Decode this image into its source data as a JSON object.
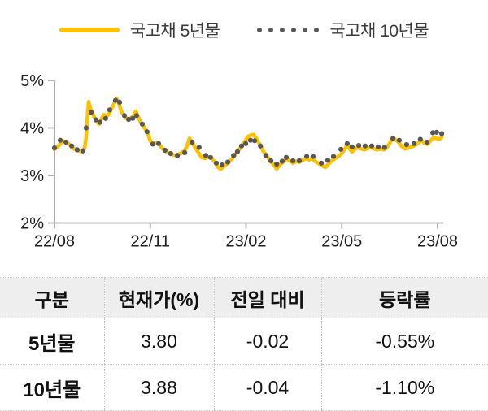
{
  "legend": {
    "series1_label": "국고채 5년물",
    "series2_label": "국고채 10년물"
  },
  "colors": {
    "line_5y": "#FFC000",
    "dots_10y": "#575757",
    "axis": "#A6A6A6",
    "axis_text": "#1f1f1f",
    "table_header_bg": "#eeeeee",
    "table_border": "#c6c6c6"
  },
  "chart_data": {
    "type": "line",
    "title": "",
    "xlabel": "",
    "ylabel": "",
    "legend_position": "top-center",
    "grid": false,
    "x_axis": {
      "tick_labels": [
        "22/08",
        "22/11",
        "23/02",
        "23/05",
        "23/08"
      ],
      "tick_positions_months": [
        0,
        3,
        6,
        9,
        12
      ]
    },
    "y_axis": {
      "tick_labels": [
        "5%",
        "4%",
        "3%",
        "2%"
      ],
      "tick_values": [
        5,
        4,
        3,
        2
      ],
      "min": 2,
      "max": 5,
      "unit": "%"
    },
    "series": [
      {
        "name": "국고채 5년물",
        "style": "line",
        "color": "#FFC000",
        "current": 3.8,
        "points": [
          [
            0.0,
            3.55
          ],
          [
            0.13,
            3.62
          ],
          [
            0.25,
            3.73
          ],
          [
            0.36,
            3.7
          ],
          [
            0.46,
            3.66
          ],
          [
            0.56,
            3.57
          ],
          [
            0.66,
            3.55
          ],
          [
            0.76,
            3.52
          ],
          [
            0.87,
            3.5
          ],
          [
            0.94,
            3.56
          ],
          [
            0.99,
            3.8
          ],
          [
            1.04,
            4.3
          ],
          [
            1.07,
            4.55
          ],
          [
            1.12,
            4.42
          ],
          [
            1.17,
            4.34
          ],
          [
            1.25,
            4.22
          ],
          [
            1.32,
            4.14
          ],
          [
            1.4,
            4.08
          ],
          [
            1.48,
            4.2
          ],
          [
            1.55,
            4.28
          ],
          [
            1.63,
            4.24
          ],
          [
            1.71,
            4.3
          ],
          [
            1.78,
            4.4
          ],
          [
            1.86,
            4.5
          ],
          [
            1.94,
            4.62
          ],
          [
            2.01,
            4.54
          ],
          [
            2.09,
            4.35
          ],
          [
            2.17,
            4.27
          ],
          [
            2.24,
            4.21
          ],
          [
            2.32,
            4.17
          ],
          [
            2.4,
            4.21
          ],
          [
            2.47,
            4.25
          ],
          [
            2.55,
            4.35
          ],
          [
            2.62,
            4.24
          ],
          [
            2.7,
            4.12
          ],
          [
            2.78,
            4.04
          ],
          [
            2.85,
            3.97
          ],
          [
            2.93,
            3.88
          ],
          [
            2.98,
            3.76
          ],
          [
            3.06,
            3.66
          ],
          [
            3.16,
            3.68
          ],
          [
            3.26,
            3.67
          ],
          [
            3.36,
            3.58
          ],
          [
            3.46,
            3.52
          ],
          [
            3.57,
            3.48
          ],
          [
            3.67,
            3.45
          ],
          [
            3.77,
            3.42
          ],
          [
            3.87,
            3.44
          ],
          [
            3.97,
            3.47
          ],
          [
            4.08,
            3.52
          ],
          [
            4.15,
            3.62
          ],
          [
            4.23,
            3.78
          ],
          [
            4.31,
            3.71
          ],
          [
            4.41,
            3.58
          ],
          [
            4.51,
            3.48
          ],
          [
            4.61,
            3.38
          ],
          [
            4.71,
            3.36
          ],
          [
            4.81,
            3.39
          ],
          [
            4.92,
            3.37
          ],
          [
            5.02,
            3.28
          ],
          [
            5.12,
            3.18
          ],
          [
            5.2,
            3.13
          ],
          [
            5.27,
            3.17
          ],
          [
            5.35,
            3.22
          ],
          [
            5.45,
            3.27
          ],
          [
            5.55,
            3.34
          ],
          [
            5.66,
            3.44
          ],
          [
            5.76,
            3.52
          ],
          [
            5.86,
            3.62
          ],
          [
            5.96,
            3.7
          ],
          [
            6.06,
            3.82
          ],
          [
            6.17,
            3.85
          ],
          [
            6.24,
            3.86
          ],
          [
            6.34,
            3.76
          ],
          [
            6.45,
            3.63
          ],
          [
            6.55,
            3.5
          ],
          [
            6.65,
            3.42
          ],
          [
            6.75,
            3.31
          ],
          [
            6.85,
            3.24
          ],
          [
            6.96,
            3.14
          ],
          [
            7.06,
            3.22
          ],
          [
            7.16,
            3.28
          ],
          [
            7.26,
            3.36
          ],
          [
            7.36,
            3.31
          ],
          [
            7.47,
            3.26
          ],
          [
            7.57,
            3.3
          ],
          [
            7.67,
            3.28
          ],
          [
            7.77,
            3.32
          ],
          [
            7.87,
            3.36
          ],
          [
            7.97,
            3.33
          ],
          [
            8.08,
            3.36
          ],
          [
            8.18,
            3.29
          ],
          [
            8.28,
            3.25
          ],
          [
            8.38,
            3.21
          ],
          [
            8.48,
            3.17
          ],
          [
            8.58,
            3.24
          ],
          [
            8.69,
            3.31
          ],
          [
            8.79,
            3.36
          ],
          [
            8.89,
            3.4
          ],
          [
            8.99,
            3.46
          ],
          [
            9.09,
            3.55
          ],
          [
            9.17,
            3.64
          ],
          [
            9.25,
            3.56
          ],
          [
            9.32,
            3.5
          ],
          [
            9.4,
            3.55
          ],
          [
            9.5,
            3.59
          ],
          [
            9.6,
            3.56
          ],
          [
            9.71,
            3.54
          ],
          [
            9.81,
            3.57
          ],
          [
            9.91,
            3.59
          ],
          [
            10.01,
            3.56
          ],
          [
            10.11,
            3.54
          ],
          [
            10.21,
            3.56
          ],
          [
            10.32,
            3.54
          ],
          [
            10.42,
            3.59
          ],
          [
            10.52,
            3.7
          ],
          [
            10.6,
            3.8
          ],
          [
            10.67,
            3.76
          ],
          [
            10.78,
            3.7
          ],
          [
            10.88,
            3.61
          ],
          [
            10.98,
            3.56
          ],
          [
            11.08,
            3.58
          ],
          [
            11.18,
            3.6
          ],
          [
            11.28,
            3.63
          ],
          [
            11.39,
            3.68
          ],
          [
            11.49,
            3.74
          ],
          [
            11.59,
            3.68
          ],
          [
            11.69,
            3.66
          ],
          [
            11.79,
            3.74
          ],
          [
            11.89,
            3.8
          ],
          [
            11.97,
            3.78
          ],
          [
            12.05,
            3.76
          ],
          [
            12.13,
            3.8
          ]
        ]
      },
      {
        "name": "국고채 10년물",
        "style": "dots",
        "color": "#575757",
        "current": 3.88,
        "points": [
          [
            0.0,
            3.58
          ],
          [
            0.18,
            3.74
          ],
          [
            0.36,
            3.7
          ],
          [
            0.54,
            3.62
          ],
          [
            0.71,
            3.54
          ],
          [
            0.89,
            3.52
          ],
          [
            0.99,
            4.0
          ],
          [
            1.15,
            4.33
          ],
          [
            1.3,
            4.17
          ],
          [
            1.43,
            4.12
          ],
          [
            1.6,
            4.2
          ],
          [
            1.73,
            4.38
          ],
          [
            1.91,
            4.58
          ],
          [
            2.04,
            4.54
          ],
          [
            2.19,
            4.26
          ],
          [
            2.32,
            4.18
          ],
          [
            2.45,
            4.2
          ],
          [
            2.57,
            4.26
          ],
          [
            2.75,
            4.08
          ],
          [
            2.9,
            3.92
          ],
          [
            3.08,
            3.66
          ],
          [
            3.26,
            3.67
          ],
          [
            3.46,
            3.53
          ],
          [
            3.64,
            3.46
          ],
          [
            3.85,
            3.42
          ],
          [
            4.08,
            3.48
          ],
          [
            4.31,
            3.7
          ],
          [
            4.53,
            3.59
          ],
          [
            4.74,
            3.42
          ],
          [
            4.89,
            3.38
          ],
          [
            5.07,
            3.26
          ],
          [
            5.25,
            3.22
          ],
          [
            5.43,
            3.28
          ],
          [
            5.61,
            3.42
          ],
          [
            5.73,
            3.5
          ],
          [
            5.86,
            3.62
          ],
          [
            5.99,
            3.67
          ],
          [
            6.14,
            3.74
          ],
          [
            6.27,
            3.73
          ],
          [
            6.45,
            3.62
          ],
          [
            6.62,
            3.42
          ],
          [
            6.78,
            3.31
          ],
          [
            6.96,
            3.24
          ],
          [
            7.13,
            3.3
          ],
          [
            7.26,
            3.38
          ],
          [
            7.47,
            3.31
          ],
          [
            7.67,
            3.31
          ],
          [
            7.9,
            3.4
          ],
          [
            8.1,
            3.4
          ],
          [
            8.36,
            3.26
          ],
          [
            8.56,
            3.32
          ],
          [
            8.74,
            3.4
          ],
          [
            8.97,
            3.55
          ],
          [
            9.17,
            3.67
          ],
          [
            9.32,
            3.6
          ],
          [
            9.53,
            3.63
          ],
          [
            9.73,
            3.62
          ],
          [
            9.94,
            3.62
          ],
          [
            10.14,
            3.6
          ],
          [
            10.34,
            3.59
          ],
          [
            10.6,
            3.78
          ],
          [
            10.8,
            3.74
          ],
          [
            11.03,
            3.65
          ],
          [
            11.26,
            3.67
          ],
          [
            11.46,
            3.76
          ],
          [
            11.67,
            3.7
          ],
          [
            11.85,
            3.9
          ],
          [
            11.97,
            3.91
          ],
          [
            12.13,
            3.88
          ]
        ]
      }
    ]
  },
  "table": {
    "headers": [
      "구분",
      "현재가(%)",
      "전일 대비",
      "등락률"
    ],
    "rows": [
      {
        "label": "5년물",
        "price": "3.80",
        "change": "-0.02",
        "rate": "-0.55%"
      },
      {
        "label": "10년물",
        "price": "3.88",
        "change": "-0.04",
        "rate": "-1.10%"
      }
    ]
  }
}
